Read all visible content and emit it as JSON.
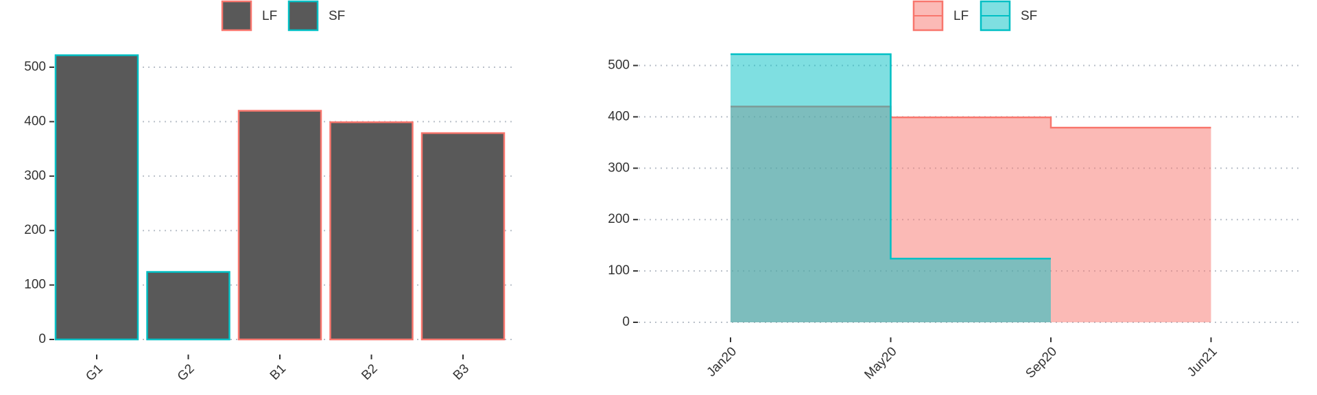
{
  "chart_data": [
    {
      "type": "bar",
      "categories": [
        "G1",
        "G2",
        "B1",
        "B2",
        "B3"
      ],
      "fill": "#595959",
      "series": [
        {
          "name": "LF",
          "color": "#F8766D",
          "values": [
            null,
            null,
            420,
            399,
            379
          ]
        },
        {
          "name": "SF",
          "color": "#00BFC4",
          "values": [
            522,
            124,
            null,
            null,
            null
          ]
        }
      ],
      "ylim": [
        0,
        522
      ],
      "yticks": [
        0,
        100,
        200,
        300,
        400,
        500
      ],
      "grid": true,
      "legend": "top"
    },
    {
      "type": "step_area",
      "categories": [
        "Jan20",
        "May20",
        "Sep20",
        "Jun21"
      ],
      "series": [
        {
          "name": "LF",
          "color": "#F8766D",
          "values": [
            420,
            399,
            379,
            379
          ]
        },
        {
          "name": "SF",
          "color": "#00BFC4",
          "values": [
            522,
            124,
            124,
            null
          ]
        }
      ],
      "ylim": [
        0,
        522
      ],
      "yticks": [
        0,
        100,
        200,
        300,
        400,
        500
      ],
      "grid": true,
      "legend": "top"
    }
  ]
}
